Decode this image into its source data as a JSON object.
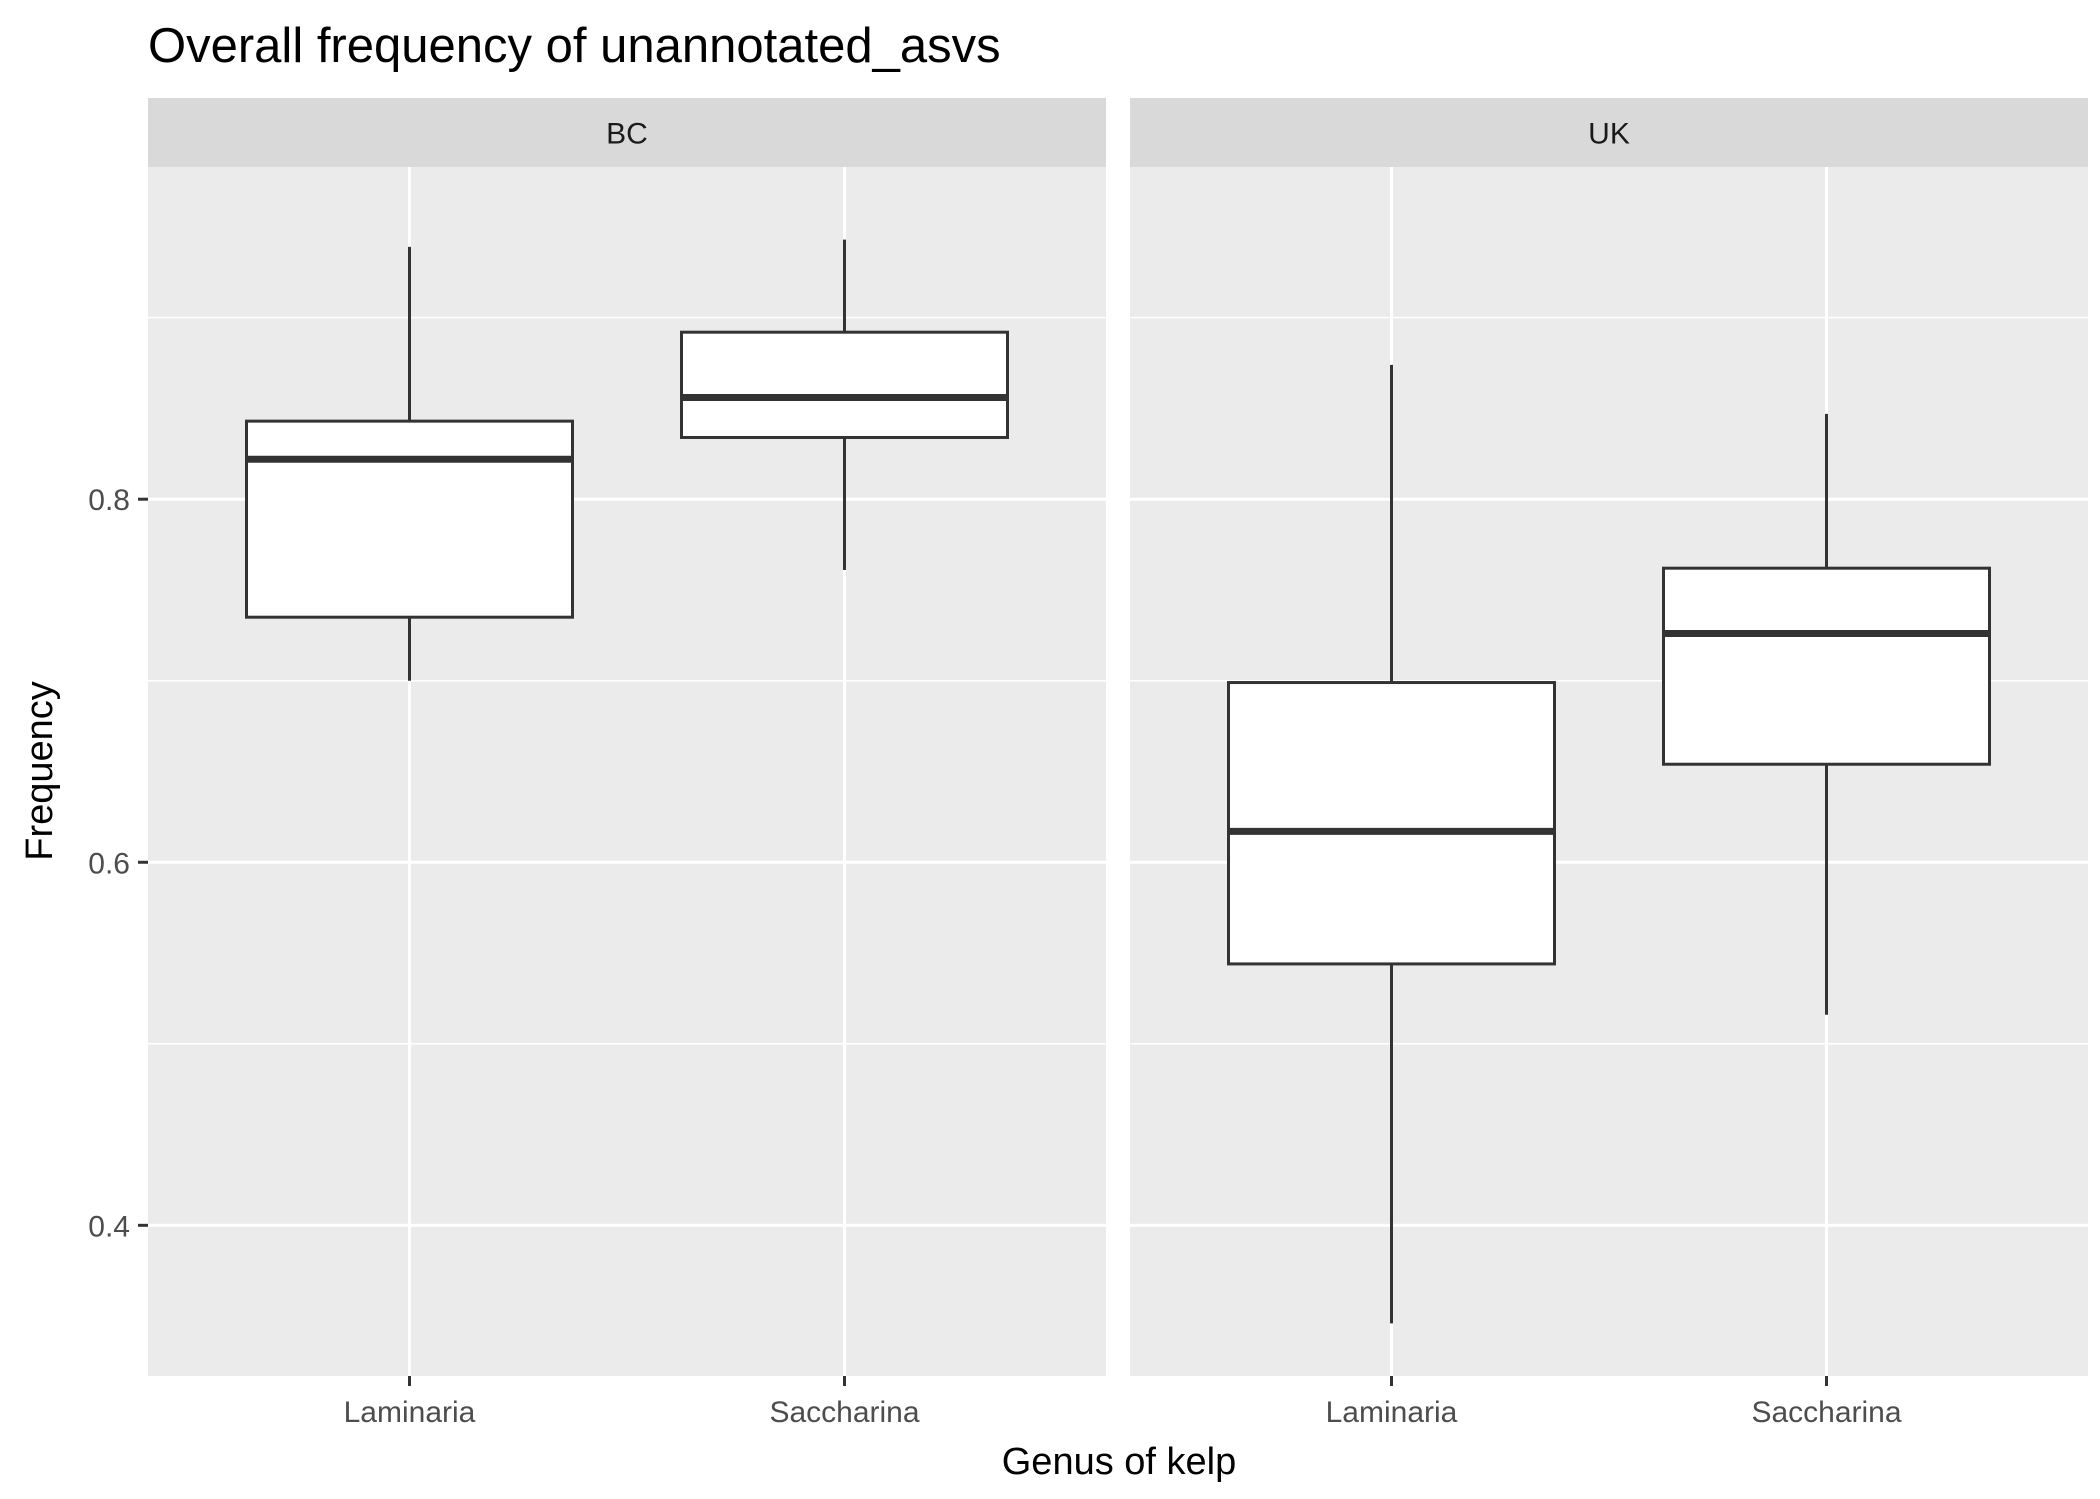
{
  "chart_data": {
    "type": "boxplot",
    "title": "Overall frequency of unannotated_asvs",
    "xlabel": "Genus of kelp",
    "ylabel": "Frequency",
    "ylim": [
      0.317,
      0.983
    ],
    "y_ticks": [
      0.4,
      0.6,
      0.8
    ],
    "y_tick_labels": [
      "0.4",
      "0.6",
      "0.8"
    ],
    "categories": [
      "Laminaria",
      "Saccharina"
    ],
    "grid": true,
    "panels": [
      {
        "label": "BC",
        "boxes": [
          {
            "category": "Laminaria",
            "min": 0.7,
            "q1": 0.735,
            "median": 0.822,
            "q3": 0.843,
            "max": 0.939
          },
          {
            "category": "Saccharina",
            "min": 0.761,
            "q1": 0.834,
            "median": 0.856,
            "q3": 0.892,
            "max": 0.943
          }
        ]
      },
      {
        "label": "UK",
        "boxes": [
          {
            "category": "Laminaria",
            "min": 0.346,
            "q1": 0.544,
            "median": 0.617,
            "q3": 0.699,
            "max": 0.874
          },
          {
            "category": "Saccharina",
            "min": 0.516,
            "q1": 0.654,
            "median": 0.726,
            "q3": 0.762,
            "max": 0.847
          }
        ]
      }
    ]
  }
}
